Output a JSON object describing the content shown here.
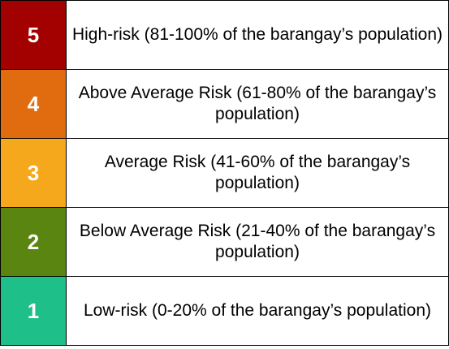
{
  "risk_levels": [
    {
      "level": "5",
      "description": "High-risk (81-100% of the barangay’s population)",
      "color": "#A30000"
    },
    {
      "level": "4",
      "description": "Above Average Risk (61-80% of the barangay’s population)",
      "color": "#E06C0F"
    },
    {
      "level": "3",
      "description": "Average Risk (41-60% of the barangay’s population)",
      "color": "#F5A81C"
    },
    {
      "level": "2",
      "description": "Below Average Risk (21-40% of the barangay’s population)",
      "color": "#5A8510"
    },
    {
      "level": "1",
      "description": "Low-risk (0-20% of the barangay’s population)",
      "color": "#1FBF8A"
    }
  ]
}
